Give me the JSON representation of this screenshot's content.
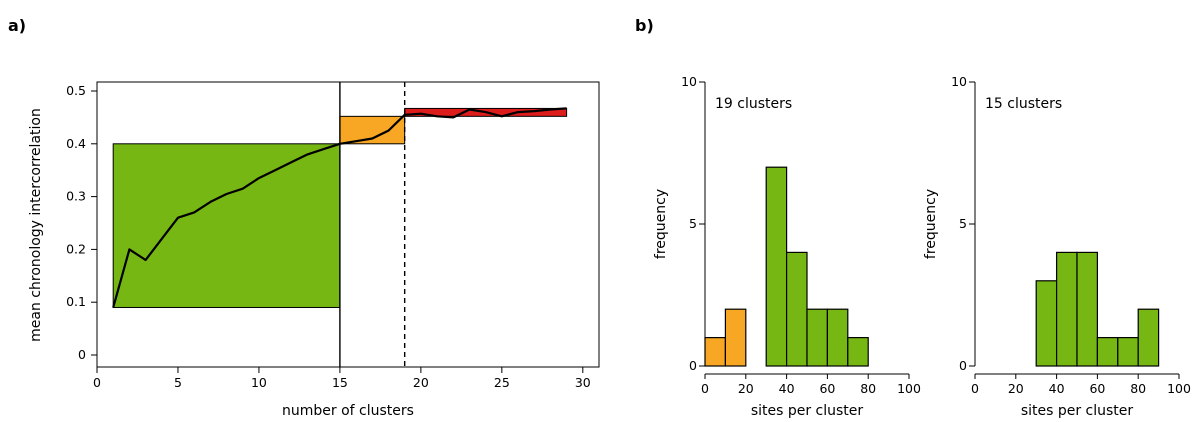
{
  "colors": {
    "green": "#76b714",
    "orange": "#f7a723",
    "red": "#dd1c1c",
    "line": "#000000"
  },
  "chart_data": [
    {
      "panel_label": "a)",
      "type": "line",
      "xlabel": "number of clusters",
      "ylabel": "mean chronology intercorrelation",
      "xlim": [
        0,
        31
      ],
      "ylim": [
        0,
        0.5
      ],
      "xticks": [
        0,
        5,
        10,
        15,
        20,
        25,
        30
      ],
      "yticks": [
        0,
        0.1,
        0.2,
        0.3,
        0.4,
        0.5
      ],
      "x": [
        1,
        2,
        3,
        4,
        5,
        6,
        7,
        8,
        9,
        10,
        11,
        12,
        13,
        14,
        15,
        16,
        17,
        18,
        19,
        20,
        21,
        22,
        23,
        24,
        25,
        26,
        27,
        28,
        29
      ],
      "y": [
        0.09,
        0.2,
        0.18,
        0.22,
        0.26,
        0.27,
        0.29,
        0.305,
        0.315,
        0.335,
        0.35,
        0.365,
        0.38,
        0.39,
        0.4,
        0.405,
        0.41,
        0.425,
        0.455,
        0.457,
        0.452,
        0.45,
        0.465,
        0.46,
        0.452,
        0.46,
        0.462,
        0.465,
        0.467
      ],
      "regions": [
        {
          "color": "green",
          "x0": 1,
          "x1": 15,
          "y0": 0.09,
          "y1": 0.4
        },
        {
          "color": "orange",
          "x0": 15,
          "x1": 19,
          "y0": 0.4,
          "y1": 0.452
        },
        {
          "color": "red",
          "x0": 19,
          "x1": 29,
          "y0": 0.452,
          "y1": 0.467
        }
      ],
      "vlines": [
        {
          "x": 15,
          "style": "solid"
        },
        {
          "x": 19,
          "style": "dashed"
        }
      ]
    },
    {
      "panel_label": "b)",
      "type": "bar",
      "annotation": "19 clusters",
      "xlabel": "sites per cluster",
      "ylabel": "frequency",
      "xlim": [
        0,
        100
      ],
      "ylim": [
        0,
        10
      ],
      "xticks": [
        0,
        20,
        40,
        60,
        80,
        100
      ],
      "yticks": [
        0,
        5,
        10
      ],
      "bins": [
        {
          "x0": 0,
          "x1": 10,
          "count": 1,
          "color": "orange"
        },
        {
          "x0": 10,
          "x1": 20,
          "count": 2,
          "color": "orange"
        },
        {
          "x0": 30,
          "x1": 40,
          "count": 7,
          "color": "green"
        },
        {
          "x0": 40,
          "x1": 50,
          "count": 4,
          "color": "green"
        },
        {
          "x0": 50,
          "x1": 60,
          "count": 2,
          "color": "green"
        },
        {
          "x0": 60,
          "x1": 70,
          "count": 2,
          "color": "green"
        },
        {
          "x0": 70,
          "x1": 80,
          "count": 1,
          "color": "green"
        }
      ]
    },
    {
      "type": "bar",
      "annotation": "15 clusters",
      "xlabel": "sites per cluster",
      "ylabel": "frequency",
      "xlim": [
        0,
        100
      ],
      "ylim": [
        0,
        10
      ],
      "xticks": [
        0,
        20,
        40,
        60,
        80,
        100
      ],
      "yticks": [
        0,
        5,
        10
      ],
      "bins": [
        {
          "x0": 30,
          "x1": 40,
          "count": 3,
          "color": "green"
        },
        {
          "x0": 40,
          "x1": 50,
          "count": 4,
          "color": "green"
        },
        {
          "x0": 50,
          "x1": 60,
          "count": 4,
          "color": "green"
        },
        {
          "x0": 60,
          "x1": 70,
          "count": 1,
          "color": "green"
        },
        {
          "x0": 70,
          "x1": 80,
          "count": 1,
          "color": "green"
        },
        {
          "x0": 80,
          "x1": 90,
          "count": 2,
          "color": "green"
        }
      ]
    }
  ]
}
